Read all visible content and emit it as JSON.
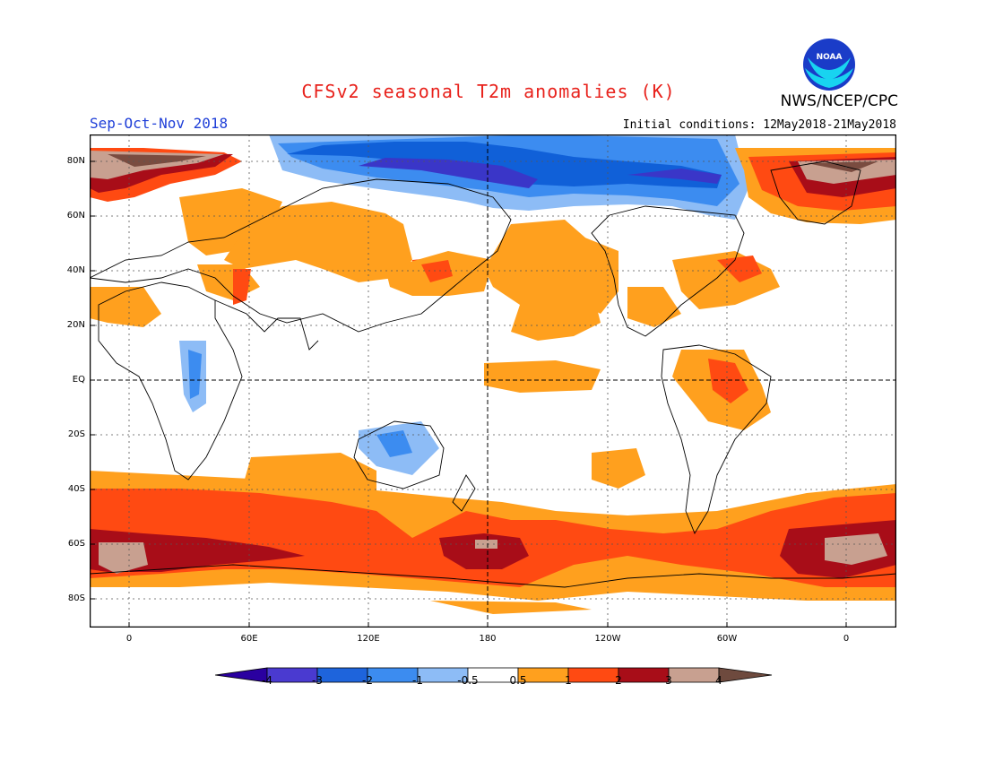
{
  "header": {
    "title": "CFSv2 seasonal T2m anomalies (K)",
    "agency": "NWS/NCEP/CPC",
    "logo_text": "NOAA",
    "season": "Sep-Oct-Nov 2018",
    "initial_conditions": "Initial conditions: 12May2018-21May2018"
  },
  "map": {
    "lat_labels": [
      "80N",
      "60N",
      "40N",
      "20N",
      "EQ",
      "20S",
      "40S",
      "60S",
      "80S"
    ],
    "lon_labels": [
      "0",
      "60E",
      "120E",
      "180",
      "120W",
      "60W",
      "0"
    ],
    "colors": {
      "ocean": "#ffffff",
      "coast": "#000000",
      "warm_1": "#ffa01e",
      "warm_2": "#ff4a12",
      "warm_3": "#a80d18",
      "warm_4": "#c8a090",
      "warm_5": "#7a4c40",
      "cold_1": "#8dbcf6",
      "cold_2": "#3c8cf0",
      "cold_3": "#1060d8",
      "cold_4": "#3a36c8"
    }
  },
  "colorbar": {
    "labels": [
      "-4",
      "-3",
      "-2",
      "-1",
      "-0.5",
      "0.5",
      "1",
      "2",
      "3",
      "4"
    ],
    "colors": [
      "#2a00a0",
      "#4a3ad0",
      "#1e64dc",
      "#3c8cf0",
      "#8dbcf6",
      "#ffffff",
      "#ffa01e",
      "#ff4a12",
      "#a80d18",
      "#c8a090",
      "#6e4a3e"
    ]
  }
}
